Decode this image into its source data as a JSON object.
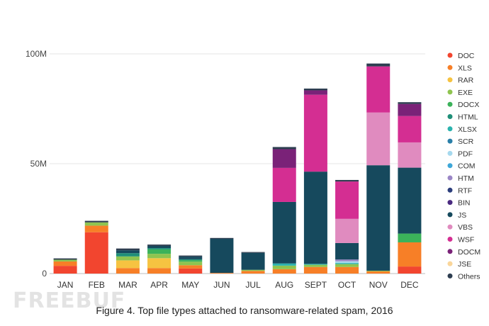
{
  "caption": "Figure 4. Top file types attached to ransomware-related spam, 2016",
  "watermark": "FREEBUF",
  "chart_data": {
    "type": "bar",
    "stacked": true,
    "grid": true,
    "legend_position": "right",
    "categories": [
      "JAN",
      "FEB",
      "MAR",
      "APR",
      "MAY",
      "JUN",
      "JUL",
      "AUG",
      "SEPT",
      "OCT",
      "NOV",
      "DEC"
    ],
    "y_ticks": [
      "0",
      "50M",
      "100M"
    ],
    "y_tick_values": [
      0,
      50,
      100
    ],
    "ylim": [
      0,
      100
    ],
    "y_unit": "M",
    "series": [
      {
        "name": "DOC",
        "color": "#f2452f",
        "values": [
          3.5,
          18.8,
          0,
          0,
          2.3,
          0,
          0,
          0,
          0,
          0,
          0,
          3.2
        ]
      },
      {
        "name": "XLS",
        "color": "#f77f27",
        "values": [
          2,
          3,
          2.5,
          2.5,
          1.5,
          0.3,
          1.2,
          2,
          3,
          3,
          1,
          11
        ]
      },
      {
        "name": "RAR",
        "color": "#f6c341",
        "values": [
          0,
          0,
          3.5,
          4.5,
          0,
          0,
          0,
          0,
          0,
          0,
          0,
          0
        ]
      },
      {
        "name": "EXE",
        "color": "#8fc450",
        "values": [
          0.8,
          1.5,
          1.8,
          2,
          1.6,
          0,
          0.5,
          1.6,
          1,
          1.3,
          0.3,
          0
        ]
      },
      {
        "name": "DOCX",
        "color": "#3bb25a",
        "values": [
          0,
          0,
          0,
          2,
          0.7,
          0,
          0,
          0,
          0,
          0,
          0,
          4
        ]
      },
      {
        "name": "HTML",
        "color": "#1f8f78",
        "values": [
          0,
          0,
          1.5,
          0.6,
          0.4,
          0,
          0,
          0,
          0,
          0,
          0,
          0
        ]
      },
      {
        "name": "XLSX",
        "color": "#2bb3ae",
        "values": [
          0,
          0,
          0,
          0,
          0,
          0,
          0,
          1,
          0.4,
          0.5,
          0,
          0
        ]
      },
      {
        "name": "SCR",
        "color": "#2a7fa8",
        "values": [
          0,
          0,
          0,
          0,
          0,
          0,
          0,
          0,
          0,
          0,
          0,
          0
        ]
      },
      {
        "name": "PDF",
        "color": "#a6d9ee",
        "values": [
          0,
          0,
          0,
          0,
          0,
          0,
          0,
          0,
          0,
          0.8,
          0,
          0
        ]
      },
      {
        "name": "COM",
        "color": "#3ea7d8",
        "values": [
          0,
          0,
          0,
          0,
          0,
          0,
          0,
          0,
          0,
          0,
          0,
          0
        ]
      },
      {
        "name": "HTM",
        "color": "#9b86c6",
        "values": [
          0,
          0,
          0,
          0,
          0,
          0,
          0,
          0,
          0,
          0.8,
          0,
          0
        ]
      },
      {
        "name": "RTF",
        "color": "#2c3e7c",
        "values": [
          0,
          0,
          0,
          0,
          0,
          0,
          0,
          0,
          0,
          0,
          0,
          0
        ]
      },
      {
        "name": "BIN",
        "color": "#4a2a80",
        "values": [
          0,
          0,
          0,
          0,
          0,
          0,
          0,
          0,
          0,
          0,
          0,
          0
        ]
      },
      {
        "name": "JS",
        "color": "#16495d",
        "values": [
          0,
          0,
          1.3,
          1,
          1.2,
          15.5,
          7.7,
          28,
          42,
          7.5,
          48,
          30
        ]
      },
      {
        "name": "VBS",
        "color": "#e08bbf",
        "values": [
          0,
          0,
          0,
          0,
          0,
          0,
          0,
          0,
          0,
          11,
          24,
          11.5
        ]
      },
      {
        "name": "WSF",
        "color": "#d42e92",
        "values": [
          0,
          0,
          0,
          0,
          0,
          0,
          0,
          15.5,
          35,
          17,
          21,
          12
        ]
      },
      {
        "name": "DOCM",
        "color": "#7a2278",
        "values": [
          0,
          0,
          0,
          0,
          0,
          0,
          0,
          8.5,
          2,
          0,
          0,
          5.5
        ]
      },
      {
        "name": "JSE",
        "color": "#fad69a",
        "values": [
          0,
          0,
          0,
          0,
          0,
          0,
          0,
          0,
          0,
          0,
          0,
          0
        ]
      },
      {
        "name": "Others",
        "color": "#2d3d50",
        "values": [
          0.6,
          0.7,
          0.8,
          0.6,
          0.5,
          0.4,
          0.4,
          1,
          0.8,
          0.7,
          1.3,
          0.8
        ]
      }
    ]
  }
}
